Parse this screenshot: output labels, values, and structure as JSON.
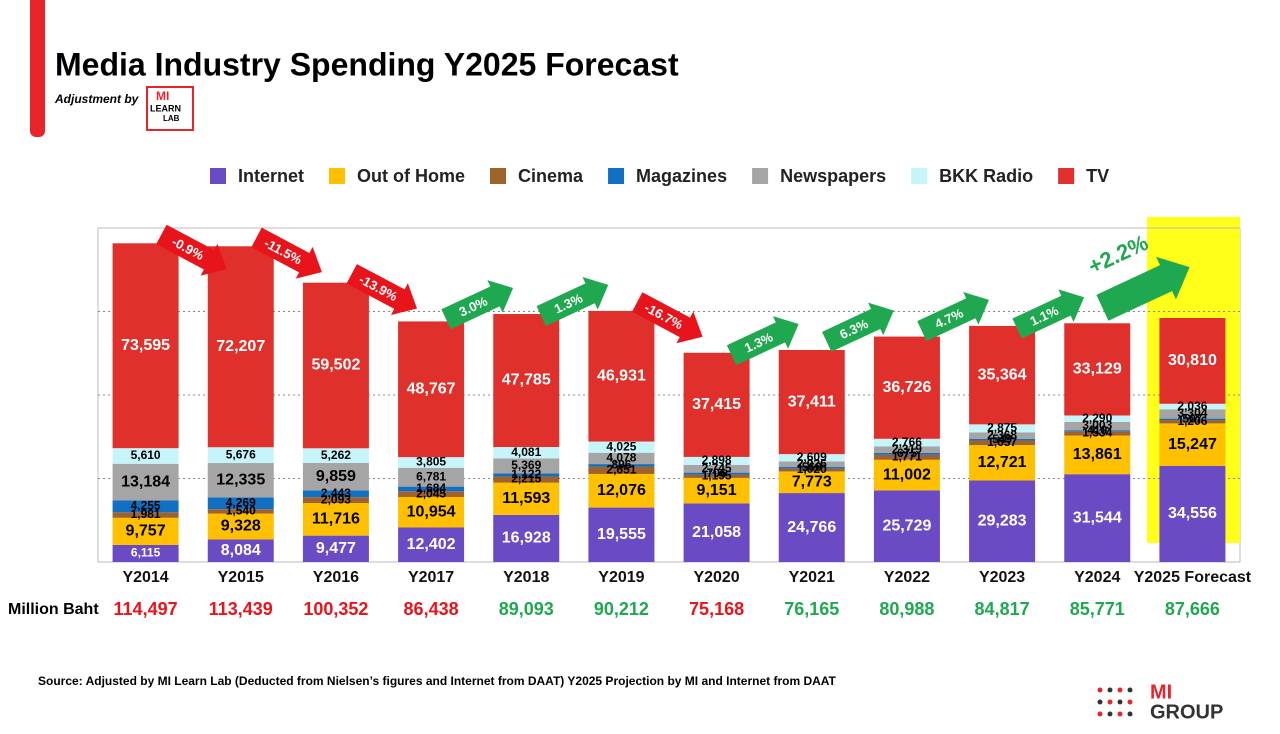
{
  "chart_data": {
    "type": "stacked_bar",
    "title": "Media Industry Spending Y2025 Forecast",
    "subtitle": "Adjustment by",
    "logo": [
      "MI",
      "LEARN",
      "LAB"
    ],
    "categories": [
      "Y2014",
      "Y2015",
      "Y2016",
      "Y2017",
      "Y2018",
      "Y2019",
      "Y2020",
      "Y2021",
      "Y2022",
      "Y2023",
      "Y2024",
      "Y2025 Forecast"
    ],
    "series": [
      {
        "name": "Internet",
        "color": "#6a4bc4",
        "label_color": "#ffffff",
        "values": [
          6115,
          8084,
          9477,
          12402,
          16928,
          19555,
          21058,
          24766,
          25729,
          29283,
          31544,
          34556
        ],
        "value_labels": [
          "6,115",
          "8,084",
          "9,477",
          "12,402",
          "16,928",
          "19,555",
          "21,058",
          "24,766",
          "25,729",
          "29,283",
          "31,544",
          "34,556"
        ]
      },
      {
        "name": "Out of Home",
        "color": "#ffc000",
        "label_color": "#000000",
        "values": [
          9757,
          9328,
          11716,
          10954,
          11593,
          12076,
          9151,
          7773,
          11002,
          12721,
          13861,
          15247
        ],
        "value_labels": [
          "9,757",
          "9,328",
          "11,716",
          "10,954",
          "11,593",
          "12,076",
          "9,151",
          "7,773",
          "11,002",
          "12,721",
          "13,861",
          "15,247"
        ]
      },
      {
        "name": "Cinema",
        "color": "#a0622d",
        "label_color": "#ffffff",
        "values": [
          1981,
          1540,
          2093,
          2045,
          2215,
          2651,
          1195,
          1020,
          1771,
          1657,
          1534,
          1206
        ],
        "value_labels": [
          "1,981",
          "1,540",
          "2,093",
          "2,045",
          "2,215",
          "2,651",
          "1,195",
          "1,020",
          "1,771",
          "1,657",
          "1,534",
          "1,206"
        ]
      },
      {
        "name": "Magazines",
        "color": "#1170c2",
        "label_color": "#ffffff",
        "values": [
          4255,
          4269,
          2443,
          1684,
          1122,
          896,
          706,
          560,
          675,
          549,
          410,
          507
        ],
        "value_labels": [
          "4,255",
          "4,269",
          "2,443",
          "1,684",
          "1,122",
          "896",
          "706",
          "560",
          "675",
          "549",
          "410",
          "507"
        ]
      },
      {
        "name": "Newspapers",
        "color": "#a5a5a5",
        "label_color": "#000000",
        "values": [
          13184,
          12335,
          9859,
          6781,
          5369,
          4078,
          2745,
          2026,
          2319,
          2368,
          3003,
          3304
        ],
        "value_labels": [
          "13,184",
          "12,335",
          "9,859",
          "6,781",
          "5,369",
          "4,078",
          "2,745",
          "2,026",
          "2,319",
          "2,368",
          "3,003",
          "3,304"
        ]
      },
      {
        "name": "BKK Radio",
        "color": "#c5f5fb",
        "label_color": "#000000",
        "values": [
          5610,
          5676,
          5262,
          3805,
          4081,
          4025,
          2898,
          2609,
          2766,
          2875,
          2290,
          2036
        ],
        "value_labels": [
          "5,610",
          "5,676",
          "5,262",
          "3,805",
          "4,081",
          "4,025",
          "2,898",
          "2,609",
          "2,766",
          "2,875",
          "2,290",
          "2,036"
        ]
      },
      {
        "name": "TV",
        "color": "#e0302b",
        "label_color": "#ffffff",
        "values": [
          73595,
          72207,
          59502,
          48767,
          47785,
          46931,
          37415,
          37411,
          36726,
          35364,
          33129,
          30810
        ],
        "value_labels": [
          "73,595",
          "72,207",
          "59,502",
          "48,767",
          "47,785",
          "46,931",
          "37,415",
          "37,411",
          "36,726",
          "35,364",
          "33,129",
          "30,810"
        ]
      }
    ],
    "totals_label": "Million Baht",
    "totals": {
      "values": [
        114497,
        113439,
        100352,
        86438,
        89093,
        90212,
        75168,
        76165,
        80988,
        84817,
        85771,
        87666
      ],
      "value_labels": [
        "114,497",
        "113,439",
        "100,352",
        "86,438",
        "89,093",
        "90,212",
        "75,168",
        "76,165",
        "80,988",
        "84,817",
        "85,771",
        "87,666"
      ],
      "colors": [
        "#e8141b",
        "#e8141b",
        "#e8141b",
        "#e8141b",
        "#1fa84f",
        "#1fa84f",
        "#e8141b",
        "#1fa84f",
        "#1fa84f",
        "#1fa84f",
        "#1fa84f",
        "#1fa84f"
      ]
    },
    "growth": [
      {
        "label": "-0.9%",
        "color": "#e8141b"
      },
      {
        "label": "-11.5%",
        "color": "#e8141b"
      },
      {
        "label": "-13.9%",
        "color": "#e8141b"
      },
      {
        "label": "3.0%",
        "color": "#1fa84f"
      },
      {
        "label": "1.3%",
        "color": "#1fa84f"
      },
      {
        "label": "-16.7%",
        "color": "#e8141b"
      },
      {
        "label": "1.3%",
        "color": "#1fa84f"
      },
      {
        "label": "6.3%",
        "color": "#1fa84f"
      },
      {
        "label": "4.7%",
        "color": "#1fa84f"
      },
      {
        "label": "1.1%",
        "color": "#1fa84f"
      },
      {
        "label": "+2.2%",
        "color": "#1fa84f"
      }
    ],
    "ylim": [
      0,
      120000
    ],
    "yticks": [
      0,
      30000,
      60000,
      90000,
      120000
    ],
    "grid": true,
    "source": "Source: Adjusted by MI Learn Lab (Deducted  from Nielsen’s figures and Internet from DAAT) Y2025 Projection by MI and Internet from DAAT",
    "footer_logo": [
      "MI",
      "GROUP"
    ]
  }
}
